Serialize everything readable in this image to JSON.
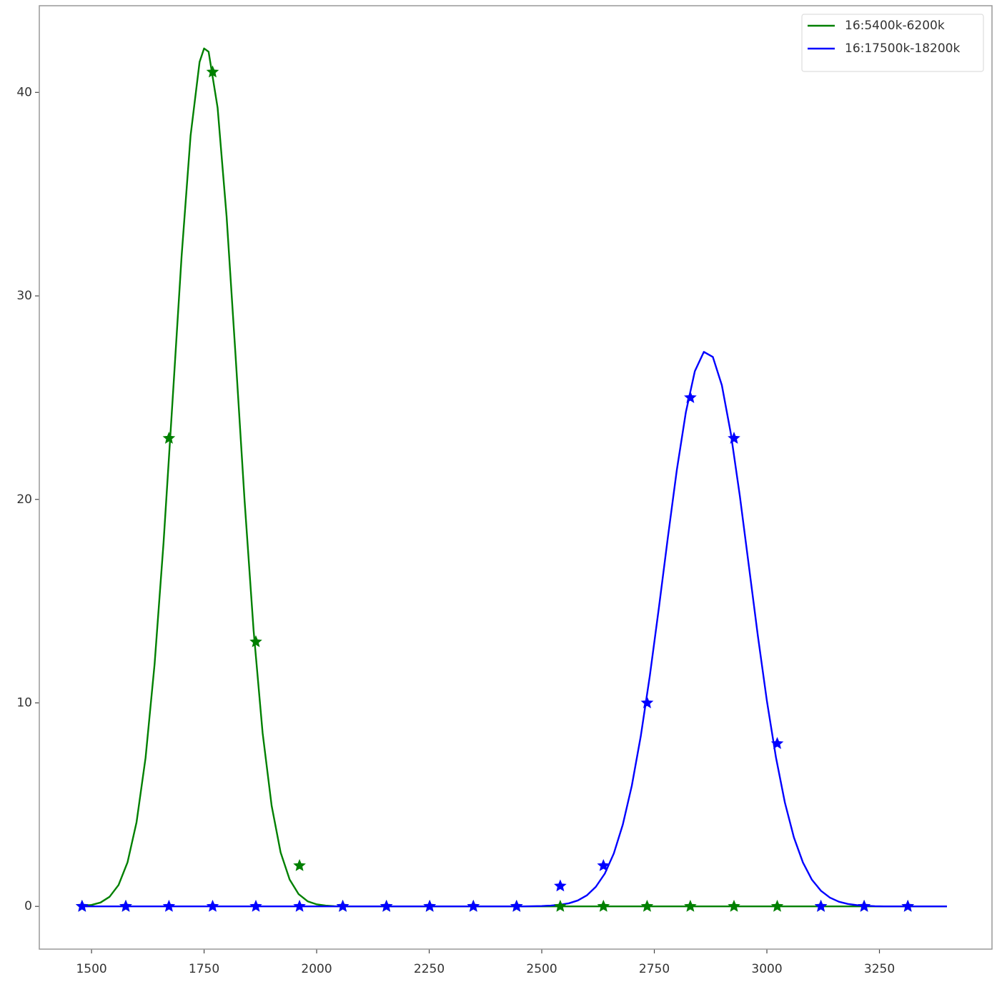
{
  "chart_data": {
    "type": "line",
    "xlim": [
      1384,
      3500
    ],
    "ylim": [
      -2.1,
      44.26
    ],
    "xticks": [
      1500,
      1750,
      2000,
      2250,
      2500,
      2750,
      3000,
      3250
    ],
    "yticks": [
      0,
      10,
      20,
      30,
      40
    ],
    "legend": "upper right",
    "series": [
      {
        "name": "16:5400k-6200k",
        "color": "green",
        "x": [
          1480,
          1500,
          1520,
          1540,
          1560,
          1580,
          1600,
          1620,
          1640,
          1660,
          1680,
          1700,
          1720,
          1740,
          1750,
          1760,
          1780,
          1800,
          1820,
          1840,
          1860,
          1880,
          1900,
          1920,
          1940,
          1960,
          1980,
          2000,
          2020,
          2040,
          2060,
          3400
        ],
        "values": [
          0.03,
          0.07,
          0.19,
          0.47,
          1.05,
          2.17,
          4.14,
          7.3,
          11.89,
          17.89,
          24.87,
          31.94,
          37.88,
          41.5,
          42.16,
          42,
          39.25,
          33.9,
          27.03,
          19.92,
          13.55,
          8.52,
          4.95,
          2.65,
          1.32,
          0.6,
          0.25,
          0.1,
          0.04,
          0.01,
          0,
          0
        ]
      },
      {
        "name": "16:17500k-18200k",
        "color": "blue",
        "x": [
          1480,
          2460,
          2480,
          2500,
          2520,
          2540,
          2560,
          2580,
          2600,
          2620,
          2640,
          2660,
          2680,
          2700,
          2720,
          2740,
          2760,
          2780,
          2800,
          2820,
          2840,
          2860,
          2880,
          2900,
          2920,
          2940,
          2960,
          2980,
          3000,
          3020,
          3040,
          3060,
          3080,
          3100,
          3120,
          3140,
          3160,
          3180,
          3200,
          3220,
          3240,
          3260,
          3400
        ],
        "values": [
          0,
          0,
          0.01,
          0.02,
          0.04,
          0.08,
          0.15,
          0.29,
          0.54,
          0.96,
          1.61,
          2.6,
          4.02,
          5.93,
          8.38,
          11.33,
          14.65,
          18.12,
          21.45,
          24.28,
          26.3,
          27.25,
          27,
          25.61,
          23.23,
          20.16,
          16.73,
          13.29,
          10.1,
          7.34,
          5.1,
          3.39,
          2.16,
          1.31,
          0.77,
          0.43,
          0.23,
          0.12,
          0.06,
          0.03,
          0.01,
          0,
          0
        ]
      },
      {
        "color": "green",
        "marker": "star",
        "x": [
          1479,
          1576,
          1672,
          1769,
          1865,
          1962,
          2058,
          2155,
          2251,
          2348,
          2444,
          2541,
          2637,
          2734,
          2830,
          2927,
          3023,
          3120,
          3216,
          3313
        ],
        "values": [
          0,
          0,
          23,
          41,
          13,
          2,
          0,
          0,
          0,
          0,
          0,
          0,
          0,
          0,
          0,
          0,
          0,
          0,
          0,
          0
        ]
      },
      {
        "color": "blue",
        "marker": "star",
        "x": [
          1479,
          1576,
          1672,
          1769,
          1865,
          1962,
          2058,
          2155,
          2251,
          2348,
          2444,
          2541,
          2637,
          2734,
          2830,
          2927,
          3023,
          3120,
          3216,
          3313
        ],
        "values": [
          0,
          0,
          0,
          0,
          0,
          0,
          0,
          0,
          0,
          0,
          0,
          1,
          2,
          10,
          25,
          23,
          8,
          0,
          0,
          0
        ]
      }
    ]
  }
}
